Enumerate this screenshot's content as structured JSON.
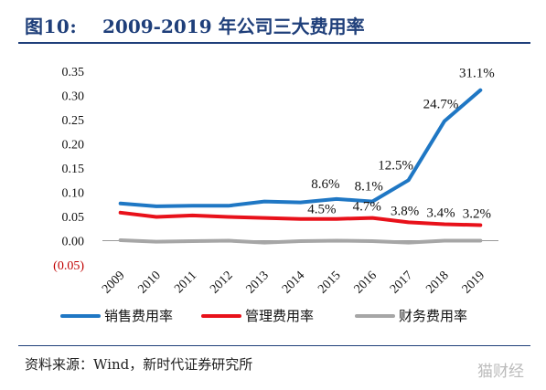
{
  "header": {
    "figure_label": "图10:",
    "figure_title": "2009-2019 年公司三大费用率"
  },
  "source": "资料来源：Wind，新时代证券研究所",
  "watermark": "猫财经",
  "chart_data": {
    "type": "line",
    "title": "2009-2019 年公司三大费用率",
    "categories": [
      "2009",
      "2010",
      "2011",
      "2012",
      "2013",
      "2014",
      "2015",
      "2016",
      "2017",
      "2018",
      "2019"
    ],
    "ylim": [
      -0.05,
      0.35
    ],
    "yticks": [
      -0.05,
      0.0,
      0.05,
      0.1,
      0.15,
      0.2,
      0.25,
      0.3,
      0.35
    ],
    "ytick_labels": [
      "(0.05)",
      "0.00",
      "0.05",
      "0.10",
      "0.15",
      "0.20",
      "0.25",
      "0.30",
      "0.35"
    ],
    "grid": false,
    "legend_position": "bottom",
    "series": [
      {
        "name": "销售费用率",
        "color": "#1f77c4",
        "values": [
          0.077,
          0.071,
          0.072,
          0.072,
          0.081,
          0.079,
          0.086,
          0.081,
          0.125,
          0.247,
          0.311
        ],
        "labels": [
          null,
          null,
          null,
          null,
          null,
          null,
          "8.6%",
          "8.1%",
          "12.5%",
          "24.7%",
          "31.1%"
        ]
      },
      {
        "name": "管理费用率",
        "color": "#e8111a",
        "values": [
          0.058,
          0.049,
          0.052,
          0.049,
          0.047,
          0.045,
          0.045,
          0.047,
          0.038,
          0.034,
          0.032
        ],
        "labels": [
          null,
          null,
          null,
          null,
          null,
          null,
          "4.5%",
          "4.7%",
          "3.8%",
          "3.4%",
          "3.2%"
        ]
      },
      {
        "name": "财务费用率",
        "color": "#a6a6a6",
        "values": [
          0.001,
          -0.002,
          -0.001,
          0.0,
          -0.004,
          -0.001,
          0.0,
          -0.001,
          -0.004,
          0.0,
          0.0
        ],
        "labels": [
          null,
          null,
          null,
          null,
          null,
          null,
          null,
          null,
          null,
          null,
          null
        ]
      }
    ]
  }
}
